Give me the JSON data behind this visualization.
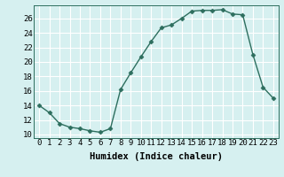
{
  "x": [
    0,
    1,
    2,
    3,
    4,
    5,
    6,
    7,
    8,
    9,
    10,
    11,
    12,
    13,
    14,
    15,
    16,
    17,
    18,
    19,
    20,
    21,
    22,
    23
  ],
  "y": [
    14,
    13,
    11.5,
    11,
    10.8,
    10.5,
    10.3,
    10.8,
    16.2,
    18.5,
    20.7,
    22.8,
    24.7,
    25.1,
    26.0,
    27.0,
    27.1,
    27.1,
    27.2,
    26.6,
    26.5,
    21.0,
    16.5,
    15.0
  ],
  "line_color": "#2d6e5e",
  "marker": "D",
  "marker_size": 2.5,
  "bg_color": "#d6f0f0",
  "grid_color": "#ffffff",
  "xlabel": "Humidex (Indice chaleur)",
  "xlim": [
    -0.5,
    23.5
  ],
  "ylim": [
    9.5,
    27.8
  ],
  "yticks": [
    10,
    12,
    14,
    16,
    18,
    20,
    22,
    24,
    26
  ],
  "xticks": [
    0,
    1,
    2,
    3,
    4,
    5,
    6,
    7,
    8,
    9,
    10,
    11,
    12,
    13,
    14,
    15,
    16,
    17,
    18,
    19,
    20,
    21,
    22,
    23
  ],
  "xlabel_fontsize": 7.5,
  "tick_fontsize": 6.5,
  "linewidth": 1.0
}
